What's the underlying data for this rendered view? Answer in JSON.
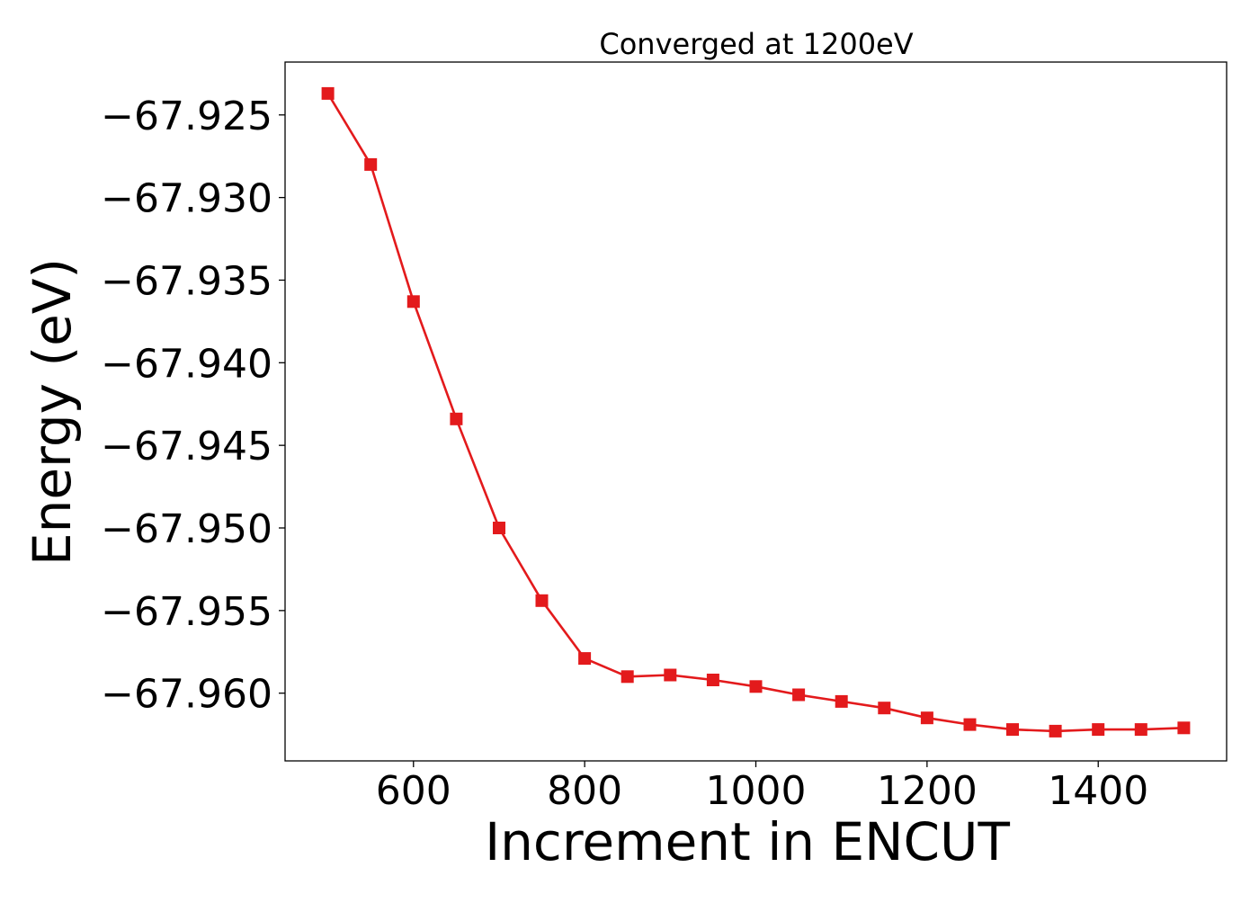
{
  "chart_data": {
    "type": "line",
    "title": "Converged at 1200eV",
    "xlabel": "Increment in ENCUT",
    "ylabel": "Energy (eV)",
    "x": [
      500,
      550,
      600,
      650,
      700,
      750,
      800,
      850,
      900,
      950,
      1000,
      1050,
      1100,
      1150,
      1200,
      1250,
      1300,
      1350,
      1400,
      1450,
      1500
    ],
    "series": [
      {
        "name": "",
        "color": "#e31a1c",
        "marker": "square",
        "values": [
          -67.9237,
          -67.928,
          -67.9363,
          -67.9434,
          -67.95,
          -67.9544,
          -67.9579,
          -67.959,
          -67.9589,
          -67.9592,
          -67.9596,
          -67.9601,
          -67.9605,
          -67.9609,
          -67.9615,
          -67.9619,
          -67.9622,
          -67.9623,
          -67.9622,
          -67.9622,
          -67.9621
        ]
      }
    ],
    "xticks": [
      600,
      800,
      1000,
      1200,
      1400
    ],
    "xtick_labels": [
      "600",
      "800",
      "1000",
      "1200",
      "1400"
    ],
    "yticks": [
      -67.925,
      -67.93,
      -67.935,
      -67.94,
      -67.945,
      -67.95,
      -67.955,
      -67.96
    ],
    "ytick_labels": [
      "−67.925",
      "−67.930",
      "−67.935",
      "−67.940",
      "−67.945",
      "−67.950",
      "−67.955",
      "−67.960"
    ],
    "xlim": [
      450,
      1550
    ],
    "ylim": [
      -67.9641,
      -67.9218
    ],
    "grid": false,
    "legend": "none"
  }
}
